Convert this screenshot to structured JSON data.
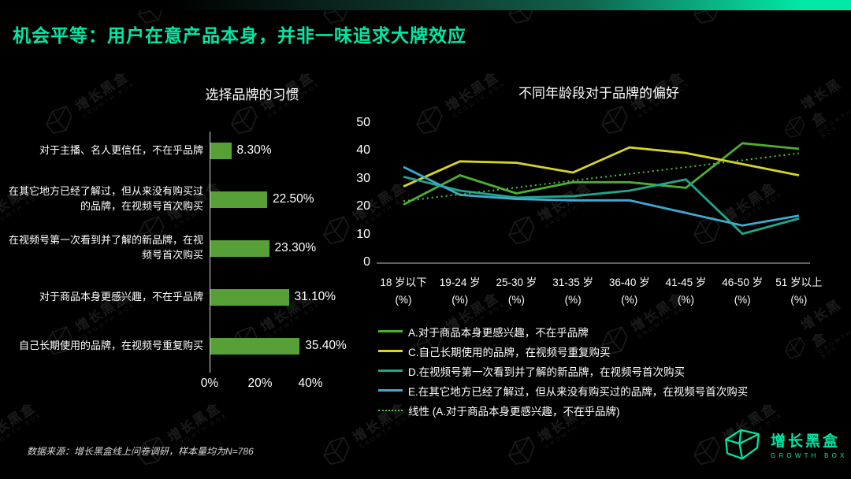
{
  "slide": {
    "title": "机会平等：用户在意产品本身，并非一味追求大牌效应",
    "accent_color": "#00E7A6",
    "background_color": "#000000",
    "source_note": "数据来源：增长黑盒线上问卷调研，样本量均为N=786",
    "logo": {
      "name_cn": "增长黑盒",
      "name_en": "GROWTH BOX"
    },
    "watermark": {
      "text_cn": "增长黑盒",
      "text_en": "GROWTH BOX"
    }
  },
  "chart_data": [
    {
      "type": "bar",
      "orientation": "horizontal",
      "title": "选择品牌的习惯",
      "categories": [
        "对于主播、名人更信任，不在乎品牌",
        "在其它地方已经了解过，但从来没有购买过的品牌，在视频号首次购买",
        "在视频号第一次看到并了解的新品牌，在视频号首次购买",
        "对于商品本身更感兴趣，不在乎品牌",
        "自己长期使用的品牌，在视频号重复购买"
      ],
      "values": [
        8.3,
        22.5,
        23.3,
        31.1,
        35.4
      ],
      "value_labels": [
        "8.30%",
        "22.50%",
        "23.30%",
        "31.10%",
        "35.40%"
      ],
      "x_ticks": [
        "0%",
        "20%",
        "40%"
      ],
      "x_tick_values": [
        0,
        20,
        40
      ],
      "xlim": [
        0,
        44
      ],
      "bar_color": "#57A038",
      "grid": false
    },
    {
      "type": "line",
      "title": "不同年龄段对于品牌的偏好",
      "categories": [
        "18 岁以下",
        "19-24 岁",
        "25-30 岁",
        "31-35 岁",
        "36-40 岁",
        "41-45 岁",
        "46-50 岁",
        "51 岁以上"
      ],
      "category_unit": "(%)",
      "y_ticks": [
        50,
        40,
        30,
        20,
        10,
        0
      ],
      "ylim": [
        0,
        50
      ],
      "grid": false,
      "legend_position": "bottom",
      "series": [
        {
          "name": "A.对于商品本身更感兴趣，不在乎品牌",
          "color": "#4FAE30",
          "style": "solid",
          "values": [
            21,
            31.5,
            25,
            29,
            29,
            27,
            43,
            41
          ]
        },
        {
          "name": "C.自己长期使用的品牌，在视频号重复购买",
          "color": "#D8D522",
          "style": "solid",
          "values": [
            27.5,
            36.5,
            36,
            32.5,
            41.5,
            39.5,
            35.5,
            31.5
          ]
        },
        {
          "name": "D.在视频号第一次看到并了解的新品牌，在视频号首次购买",
          "color": "#1FA78C",
          "style": "solid",
          "values": [
            31,
            26,
            23.5,
            24,
            26,
            30,
            10.5,
            16
          ]
        },
        {
          "name": "E.在其它地方已经了解过，但从来没有购买过的品牌，在视频号首次购买",
          "color": "#3FA9CE",
          "style": "solid",
          "values": [
            34.5,
            24.5,
            23,
            22.5,
            22.5,
            18,
            13.5,
            17
          ]
        },
        {
          "name": "线性 (A.对于商品本身更感兴趣，不在乎品牌)",
          "color": "#52C13B",
          "style": "dotted",
          "values": [
            22.2,
            24.7,
            27.1,
            29.6,
            32,
            34.4,
            36.9,
            39.4
          ]
        }
      ]
    }
  ]
}
